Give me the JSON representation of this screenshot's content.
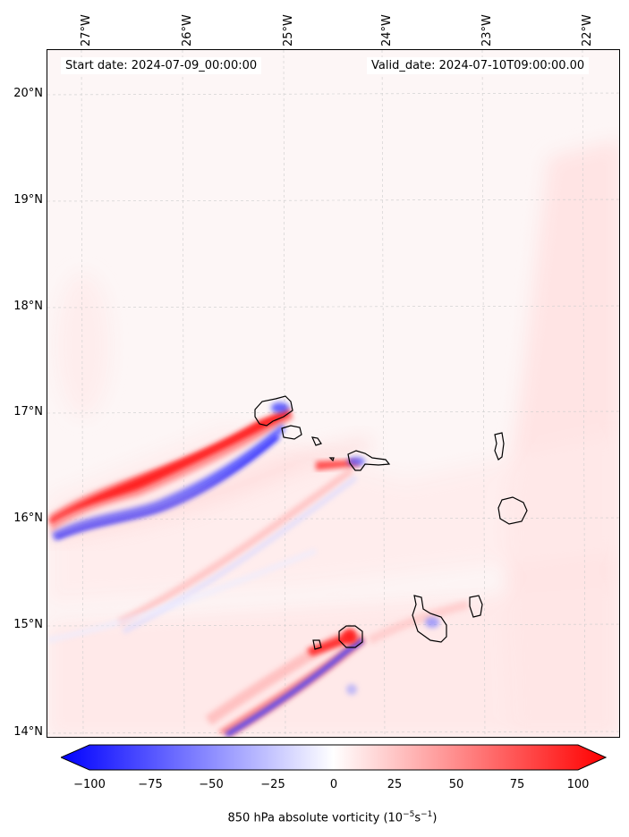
{
  "map": {
    "region": "Cape Verde islands, eastern Atlantic",
    "lon_labels": [
      "27°W",
      "26°W",
      "25°W",
      "24°W",
      "23°W",
      "22°W"
    ],
    "lat_labels": [
      "20°N",
      "19°N",
      "18°N",
      "17°N",
      "16°N",
      "15°N",
      "14°N"
    ],
    "start_date": "Start date: 2024-07-09_00:00:00",
    "valid_date": "Valid_date: 2024-07-10T09:00:00.00"
  },
  "colorbar": {
    "ticks": [
      "−100",
      "−75",
      "−50",
      "−25",
      "0",
      "25",
      "50",
      "75",
      "100"
    ],
    "label_main": "850 hPa absolute vorticity (10",
    "label_exp1": "−5",
    "label_mid": "s",
    "label_exp2": "−1",
    "label_end": ")",
    "min_color": "#0000ff",
    "mid_color": "#ffffff",
    "max_color": "#ff0000"
  }
}
